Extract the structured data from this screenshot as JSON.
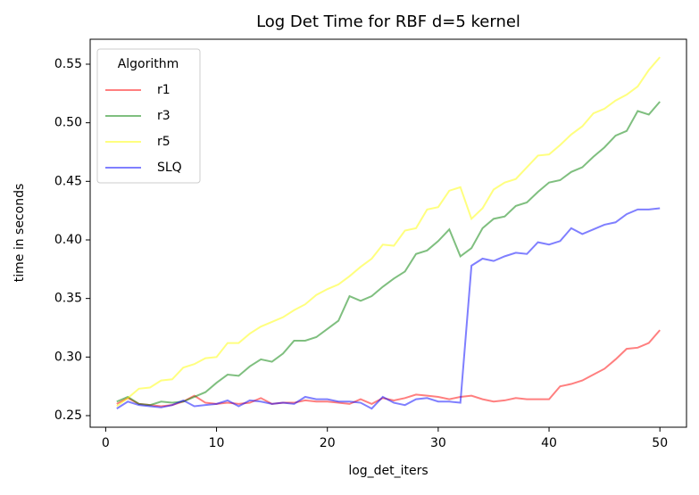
{
  "chart_data": {
    "type": "line",
    "title": "Log Det Time for RBF d=5 kernel",
    "x_label": "log_det_iters",
    "y_label": "time in seconds",
    "x": [
      1,
      2,
      3,
      4,
      5,
      6,
      7,
      8,
      9,
      10,
      11,
      12,
      13,
      14,
      15,
      16,
      17,
      18,
      19,
      20,
      21,
      22,
      23,
      24,
      25,
      26,
      27,
      28,
      29,
      30,
      31,
      32,
      33,
      34,
      35,
      36,
      37,
      38,
      39,
      40,
      41,
      42,
      43,
      44,
      45,
      46,
      47,
      48,
      49,
      50
    ],
    "series": [
      {
        "name": "r1",
        "color": "red",
        "values": [
          0.26,
          0.265,
          0.26,
          0.259,
          0.258,
          0.259,
          0.262,
          0.267,
          0.261,
          0.26,
          0.261,
          0.26,
          0.261,
          0.265,
          0.26,
          0.261,
          0.261,
          0.263,
          0.262,
          0.262,
          0.261,
          0.26,
          0.264,
          0.26,
          0.265,
          0.263,
          0.265,
          0.268,
          0.267,
          0.266,
          0.264,
          0.266,
          0.267,
          0.264,
          0.262,
          0.263,
          0.265,
          0.264,
          0.264,
          0.264,
          0.275,
          0.277,
          0.28,
          0.285,
          0.29,
          0.298,
          0.307,
          0.308,
          0.312,
          0.323
        ]
      },
      {
        "name": "r3",
        "color": "green",
        "values": [
          0.262,
          0.266,
          0.26,
          0.259,
          0.262,
          0.261,
          0.262,
          0.266,
          0.27,
          0.278,
          0.285,
          0.284,
          0.292,
          0.298,
          0.296,
          0.303,
          0.314,
          0.314,
          0.317,
          0.324,
          0.331,
          0.352,
          0.348,
          0.352,
          0.36,
          0.367,
          0.373,
          0.388,
          0.391,
          0.399,
          0.409,
          0.386,
          0.393,
          0.41,
          0.418,
          0.42,
          0.429,
          0.432,
          0.441,
          0.449,
          0.451,
          0.458,
          0.462,
          0.471,
          0.479,
          0.489,
          0.493,
          0.51,
          0.507,
          0.518
        ]
      },
      {
        "name": "r5",
        "color": "yellow",
        "values": [
          0.258,
          0.265,
          0.273,
          0.274,
          0.28,
          0.281,
          0.291,
          0.294,
          0.299,
          0.3,
          0.312,
          0.312,
          0.32,
          0.326,
          0.33,
          0.334,
          0.34,
          0.345,
          0.353,
          0.358,
          0.362,
          0.369,
          0.377,
          0.384,
          0.396,
          0.395,
          0.408,
          0.41,
          0.426,
          0.428,
          0.442,
          0.445,
          0.418,
          0.427,
          0.443,
          0.449,
          0.452,
          0.462,
          0.472,
          0.473,
          0.481,
          0.49,
          0.497,
          0.508,
          0.512,
          0.519,
          0.524,
          0.531,
          0.545,
          0.556
        ]
      },
      {
        "name": "SLQ",
        "color": "blue",
        "values": [
          0.256,
          0.262,
          0.259,
          0.258,
          0.257,
          0.259,
          0.263,
          0.258,
          0.259,
          0.26,
          0.263,
          0.258,
          0.263,
          0.262,
          0.26,
          0.261,
          0.26,
          0.266,
          0.264,
          0.264,
          0.262,
          0.262,
          0.261,
          0.256,
          0.266,
          0.261,
          0.259,
          0.264,
          0.265,
          0.262,
          0.262,
          0.261,
          0.378,
          0.384,
          0.382,
          0.386,
          0.389,
          0.388,
          0.398,
          0.396,
          0.399,
          0.41,
          0.405,
          0.409,
          0.413,
          0.415,
          0.422,
          0.426,
          0.426,
          0.427
        ]
      }
    ],
    "xlim": [
      -1.4,
      52.4
    ],
    "xticks": [
      0,
      10,
      20,
      30,
      40,
      50
    ],
    "ylim": [
      0.2401,
      0.5713
    ],
    "yticks": [
      0.25,
      {
        "value": 0.3,
        "label": "0.30"
      },
      0.35,
      {
        "value": 0.4,
        "label": "0.40"
      },
      0.45,
      {
        "value": 0.5,
        "label": "0.50"
      },
      0.55
    ],
    "legend_title": "Algorithm",
    "legend_position": "upper-left"
  }
}
